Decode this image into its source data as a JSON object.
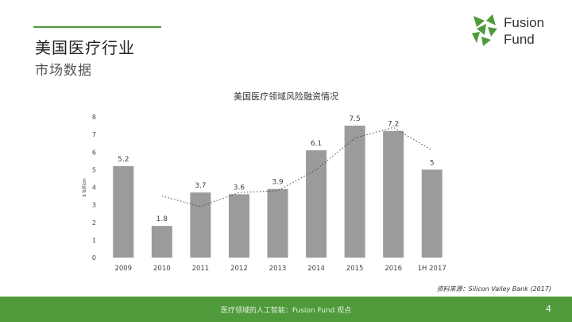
{
  "header": {
    "title": "美国医疗行业",
    "subtitle": "市场数据"
  },
  "logo": {
    "line1": "Fusion",
    "line2": "Fund"
  },
  "colors": {
    "accent": "#4f9a3a",
    "bar": "#9b9b9b",
    "trend": "#444444"
  },
  "chart_data": {
    "type": "bar",
    "title": "美国医疗领域风险融资情况",
    "ylabel": "$ billion",
    "xlabel": "",
    "categories": [
      "2009",
      "2010",
      "2011",
      "2012",
      "2013",
      "2014",
      "2015",
      "2016",
      "1H 2017"
    ],
    "values": [
      5.2,
      1.8,
      3.7,
      3.6,
      3.9,
      6.1,
      7.5,
      7.2,
      5
    ],
    "value_labels": [
      "5.2",
      "1.8",
      "3.7",
      "3.6",
      "3.9",
      "6.1",
      "7.5",
      "7.2",
      "5"
    ],
    "ylim": [
      0,
      8
    ],
    "yticks": [
      0,
      1,
      2,
      3,
      4,
      5,
      6,
      7,
      8
    ],
    "grid": false,
    "trendline": {
      "style": "dotted",
      "categories": [
        "2010",
        "2011",
        "2012",
        "2013",
        "2014",
        "2015",
        "2016",
        "1H 2017"
      ],
      "values": [
        3.5,
        2.9,
        3.7,
        3.8,
        5.0,
        6.8,
        7.4,
        6.1
      ]
    }
  },
  "source": "资料来源：Silicon Valley Bank (2017)",
  "footer": {
    "text": "医疗领域的人工智能：Fusion Fund 观点",
    "page": "4"
  }
}
